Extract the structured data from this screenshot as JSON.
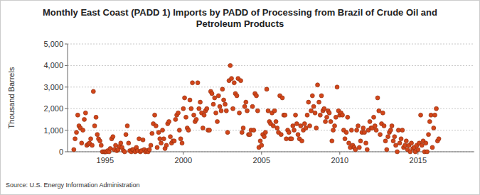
{
  "chart_data": {
    "type": "scatter",
    "title": "Monthly East Coast (PADD 1) Imports by PADD of Processing from Brazil of Crude Oil and Petroleum Products",
    "y_label": "Thousand Barrels",
    "source": "Source: U.S. Energy Information Administration",
    "color": "#d2461a",
    "marker": "circle",
    "grid": true,
    "xlim": [
      1992.6,
      2018.6
    ],
    "xticks": [
      1995,
      2000,
      2005,
      2010,
      2015
    ],
    "ylim": [
      0,
      5000
    ],
    "yticks": [
      0,
      {
        "value": 1000,
        "label": "1,000"
      },
      {
        "value": 2000,
        "label": "2,000"
      },
      {
        "value": 3000,
        "label": "3,000"
      },
      {
        "value": 4000,
        "label": "4,000"
      },
      {
        "value": 5000,
        "label": "5,000"
      }
    ],
    "x": [
      1993,
      1993.08,
      1993.17,
      1993.25,
      1993.33,
      1993.42,
      1993.5,
      1993.58,
      1993.67,
      1993.75,
      1993.83,
      1993.92,
      1994,
      1994.08,
      1994.17,
      1994.25,
      1994.33,
      1994.42,
      1994.5,
      1994.58,
      1994.67,
      1994.75,
      1994.83,
      1994.92,
      1995,
      1995.08,
      1995.17,
      1995.25,
      1995.33,
      1995.42,
      1995.5,
      1995.58,
      1995.67,
      1995.75,
      1995.83,
      1995.92,
      1996,
      1996.08,
      1996.17,
      1996.25,
      1996.33,
      1996.42,
      1996.5,
      1996.58,
      1996.67,
      1996.75,
      1996.83,
      1996.92,
      1997,
      1997.08,
      1997.17,
      1997.25,
      1997.33,
      1997.42,
      1997.5,
      1997.58,
      1997.67,
      1997.75,
      1997.83,
      1997.92,
      1998,
      1998.08,
      1998.17,
      1998.25,
      1998.33,
      1998.42,
      1998.5,
      1998.58,
      1998.67,
      1998.75,
      1998.83,
      1998.92,
      1999,
      1999.08,
      1999.17,
      1999.25,
      1999.33,
      1999.42,
      1999.5,
      1999.58,
      1999.67,
      1999.75,
      1999.83,
      1999.92,
      2000,
      2000.08,
      2000.17,
      2000.25,
      2000.33,
      2000.42,
      2000.5,
      2000.58,
      2000.67,
      2000.75,
      2000.83,
      2000.92,
      2001,
      2001.08,
      2001.17,
      2001.25,
      2001.33,
      2001.42,
      2001.5,
      2001.58,
      2001.67,
      2001.75,
      2001.83,
      2001.92,
      2002,
      2002.08,
      2002.17,
      2002.25,
      2002.33,
      2002.42,
      2002.5,
      2002.58,
      2002.67,
      2002.75,
      2002.83,
      2002.92,
      2003,
      2003.08,
      2003.17,
      2003.25,
      2003.33,
      2003.42,
      2003.5,
      2003.58,
      2003.67,
      2003.75,
      2003.83,
      2003.92,
      2004,
      2004.08,
      2004.17,
      2004.25,
      2004.33,
      2004.42,
      2004.5,
      2004.58,
      2004.67,
      2004.75,
      2004.83,
      2004.92,
      2005,
      2005.08,
      2005.17,
      2005.25,
      2005.33,
      2005.42,
      2005.5,
      2005.58,
      2005.67,
      2005.75,
      2005.83,
      2005.92,
      2006,
      2006.08,
      2006.17,
      2006.25,
      2006.33,
      2006.42,
      2006.5,
      2006.58,
      2006.67,
      2006.75,
      2006.83,
      2006.92,
      2007,
      2007.08,
      2007.17,
      2007.25,
      2007.33,
      2007.42,
      2007.5,
      2007.58,
      2007.67,
      2007.75,
      2007.83,
      2007.92,
      2008,
      2008.08,
      2008.17,
      2008.25,
      2008.33,
      2008.42,
      2008.5,
      2008.58,
      2008.67,
      2008.75,
      2008.83,
      2008.92,
      2009,
      2009.08,
      2009.17,
      2009.25,
      2009.33,
      2009.42,
      2009.5,
      2009.58,
      2009.67,
      2009.75,
      2009.83,
      2009.92,
      2010,
      2010.08,
      2010.17,
      2010.25,
      2010.33,
      2010.42,
      2010.5,
      2010.58,
      2010.67,
      2010.75,
      2010.83,
      2010.92,
      2011,
      2011.08,
      2011.17,
      2011.25,
      2011.33,
      2011.42,
      2011.5,
      2011.58,
      2011.67,
      2011.75,
      2011.83,
      2011.92,
      2012,
      2012.08,
      2012.17,
      2012.25,
      2012.33,
      2012.42,
      2012.5,
      2012.58,
      2012.67,
      2012.75,
      2012.83,
      2012.92,
      2013,
      2013.08,
      2013.17,
      2013.25,
      2013.33,
      2013.42,
      2013.5,
      2013.58,
      2013.67,
      2013.75,
      2013.83,
      2013.92,
      2014,
      2014.08,
      2014.17,
      2014.25,
      2014.33,
      2014.42,
      2014.5,
      2014.58,
      2014.67,
      2014.75,
      2014.83,
      2014.92,
      2015,
      2015.08,
      2015.17,
      2015.25,
      2015.33,
      2015.42,
      2015.5,
      2015.58,
      2015.67,
      2015.75,
      2015.83,
      2015.92,
      2016,
      2016.08,
      2016.17,
      2016.25,
      2016.33
    ],
    "values": [
      100,
      600,
      900,
      1700,
      1200,
      1100,
      400,
      1000,
      1500,
      1800,
      300,
      350,
      400,
      600,
      300,
      2800,
      1200,
      1600,
      800,
      600,
      500,
      300,
      0,
      0,
      0,
      0,
      50,
      0,
      150,
      600,
      700,
      100,
      300,
      50,
      100,
      250,
      400,
      200,
      50,
      0,
      800,
      1200,
      400,
      50,
      0,
      100,
      100,
      0,
      200,
      50,
      600,
      0,
      50,
      550,
      100,
      0,
      50,
      0,
      100,
      300,
      850,
      1300,
      1700,
      1200,
      200,
      900,
      600,
      400,
      1000,
      600,
      150,
      300,
      1300,
      1400,
      700,
      400,
      500,
      500,
      1500,
      1700,
      1800,
      1000,
      600,
      400,
      2000,
      2500,
      1600,
      1100,
      1000,
      2400,
      2000,
      3200,
      1700,
      1400,
      1500,
      3200,
      2000,
      2300,
      1800,
      1100,
      1700,
      1900,
      2000,
      1000,
      1000,
      2800,
      2700,
      2200,
      2500,
      1800,
      1400,
      2600,
      2100,
      1900,
      2900,
      2400,
      2200,
      1900,
      900,
      3300,
      4000,
      3400,
      2000,
      3200,
      2700,
      2600,
      3400,
      1800,
      3300,
      900,
      1100,
      2100,
      2300,
      1900,
      800,
      800,
      1000,
      2100,
      1000,
      2700,
      2600,
      1900,
      200,
      500,
      300,
      800,
      700,
      900,
      2900,
      1900,
      1400,
      1300,
      1800,
      1200,
      1900,
      1400,
      1100,
      900,
      2600,
      800,
      2500,
      1700,
      1700,
      600,
      1000,
      900,
      600,
      600,
      1200,
      1000,
      1700,
      1300,
      800,
      600,
      1200,
      500,
      1000,
      1300,
      1100,
      1700,
      2300,
      1200,
      1900,
      2600,
      2100,
      1800,
      1100,
      3100,
      2300,
      1700,
      2600,
      1900,
      2000,
      1400,
      1600,
      1900,
      1800,
      1400,
      500,
      1000,
      1200,
      1600,
      3000,
      1900,
      1700,
      1800,
      1700,
      1000,
      600,
      900,
      1600,
      400,
      200,
      1000,
      300,
      200,
      100,
      1000,
      1200,
      200,
      500,
      900,
      1100,
      900,
      400,
      100,
      1000,
      1400,
      1100,
      1100,
      1600,
      1200,
      1000,
      2500,
      1900,
      800,
      1300,
      1800,
      1200,
      500,
      100,
      700,
      900,
      1000,
      1200,
      500,
      700,
      300,
      0,
      1000,
      400,
      600,
      1000,
      200,
      300,
      500,
      100,
      300,
      0,
      400,
      150,
      200,
      0,
      300,
      100,
      400,
      1700,
      300,
      500,
      0,
      400,
      0,
      800,
      1400,
      1700,
      200,
      1100,
      1700,
      2000,
      500,
      600
    ]
  }
}
